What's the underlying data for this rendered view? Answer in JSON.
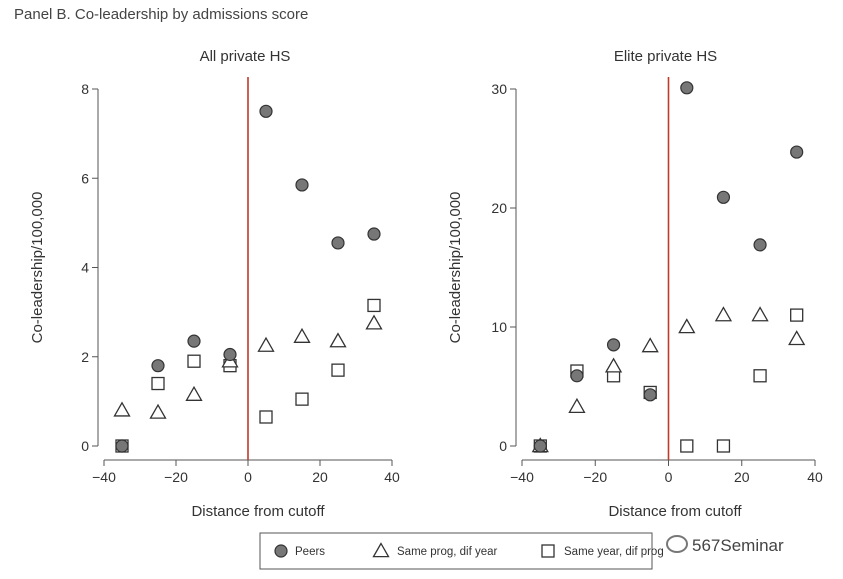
{
  "panel_title": "Panel B. Co-leadership by admissions score",
  "watermark": "567Seminar",
  "colors": {
    "cutoff_line": "#c0392b",
    "peer_fill": "#777777",
    "marker_stroke": "#333333",
    "axis": "#555555"
  },
  "legend": {
    "items": [
      {
        "label": "Peers",
        "marker": "circle"
      },
      {
        "label": "Same prog, dif year",
        "marker": "triangle"
      },
      {
        "label": "Same year, dif prog",
        "marker": "square"
      }
    ]
  },
  "chart_data": [
    {
      "type": "scatter",
      "title": "All private HS",
      "xlabel": "Distance from cutoff",
      "ylabel": "Co-leadership/100,000",
      "xlim": [
        -40,
        40
      ],
      "ylim": [
        0,
        8
      ],
      "xticks": [
        -40,
        -20,
        0,
        20,
        40
      ],
      "yticks": [
        0,
        2,
        4,
        6,
        8
      ],
      "xticklabels": [
        "−40",
        "−20",
        "0",
        "20",
        "40"
      ],
      "yticklabels": [
        "0",
        "2",
        "4",
        "6",
        "8"
      ],
      "cutoff": 0,
      "series": [
        {
          "name": "Peers",
          "marker": "circle",
          "x": [
            -35,
            -25,
            -15,
            -5,
            5,
            15,
            25,
            35
          ],
          "y": [
            0.0,
            1.8,
            2.35,
            2.05,
            7.5,
            5.85,
            4.55,
            4.75
          ]
        },
        {
          "name": "Same prog, dif year",
          "marker": "triangle",
          "x": [
            -35,
            -25,
            -15,
            -5,
            5,
            15,
            25,
            35
          ],
          "y": [
            0.8,
            0.75,
            1.15,
            1.9,
            2.25,
            2.45,
            2.35,
            2.75
          ]
        },
        {
          "name": "Same year, dif prog",
          "marker": "square",
          "x": [
            -35,
            -25,
            -15,
            -5,
            5,
            15,
            25,
            35
          ],
          "y": [
            0.0,
            1.4,
            1.9,
            1.8,
            0.65,
            1.05,
            1.7,
            3.15
          ]
        }
      ]
    },
    {
      "type": "scatter",
      "title": "Elite private HS",
      "xlabel": "Distance from cutoff",
      "ylabel": "Co-leadership/100,000",
      "xlim": [
        -40,
        40
      ],
      "ylim": [
        0,
        30
      ],
      "xticks": [
        -40,
        -20,
        0,
        20,
        40
      ],
      "yticks": [
        0,
        10,
        20,
        30
      ],
      "xticklabels": [
        "−40",
        "−20",
        "0",
        "20",
        "40"
      ],
      "yticklabels": [
        "0",
        "10",
        "20",
        "30"
      ],
      "cutoff": 0,
      "series": [
        {
          "name": "Peers",
          "marker": "circle",
          "x": [
            -35,
            -25,
            -15,
            -5,
            5,
            15,
            25,
            35
          ],
          "y": [
            0.0,
            5.9,
            8.5,
            4.3,
            30.1,
            20.9,
            16.9,
            24.7
          ]
        },
        {
          "name": "Same prog, dif year",
          "marker": "triangle",
          "x": [
            -35,
            -25,
            -15,
            -5,
            5,
            15,
            25,
            35
          ],
          "y": [
            0.0,
            3.3,
            6.7,
            8.4,
            10.0,
            11.0,
            11.0,
            9.0
          ]
        },
        {
          "name": "Same year, dif prog",
          "marker": "square",
          "x": [
            -35,
            -25,
            -15,
            -5,
            5,
            15,
            25,
            35
          ],
          "y": [
            0.0,
            6.3,
            5.9,
            4.5,
            0.0,
            0.0,
            5.9,
            11.0
          ]
        }
      ]
    }
  ]
}
